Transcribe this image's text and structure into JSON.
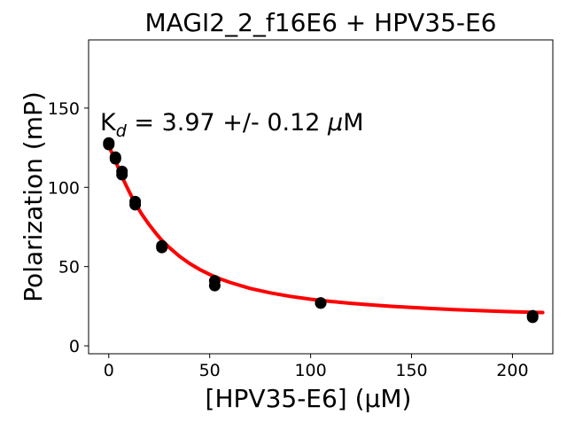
{
  "chart_data": {
    "type": "scatter",
    "title": "MAGI2_2_f16E6 + HPV35-E6",
    "xlabel": "[HPV35-E6] (μM)",
    "ylabel": "Polarization (mP)",
    "xlim": [
      -10,
      220
    ],
    "ylim": [
      -5,
      193
    ],
    "xticks": [
      0,
      50,
      100,
      150,
      200
    ],
    "yticks": [
      0,
      50,
      100,
      150
    ],
    "grid": false,
    "annotation": {
      "prefix": "K",
      "subscript": "d",
      "text": " = 3.97 +/- 0.12 ",
      "mu": "μ",
      "unit": "M"
    },
    "series": [
      {
        "kind": "points",
        "color": "#000000",
        "points": [
          {
            "x": 0,
            "y": 128
          },
          {
            "x": 0,
            "y": 127
          },
          {
            "x": 3.28,
            "y": 119
          },
          {
            "x": 3.28,
            "y": 118
          },
          {
            "x": 6.56,
            "y": 110
          },
          {
            "x": 6.56,
            "y": 108
          },
          {
            "x": 13.1,
            "y": 91
          },
          {
            "x": 13.1,
            "y": 89
          },
          {
            "x": 26.3,
            "y": 63
          },
          {
            "x": 26.3,
            "y": 62
          },
          {
            "x": 52.5,
            "y": 41
          },
          {
            "x": 52.5,
            "y": 38
          },
          {
            "x": 105,
            "y": 27
          },
          {
            "x": 105,
            "y": 27
          },
          {
            "x": 210,
            "y": 19
          },
          {
            "x": 210,
            "y": 18
          }
        ]
      },
      {
        "kind": "fit",
        "color": "#ff0000",
        "x": [
          0,
          2,
          4,
          6,
          8,
          10,
          12,
          14,
          16,
          18,
          20,
          23,
          26,
          30,
          35,
          40,
          45,
          50,
          55,
          60,
          70,
          80,
          90,
          100,
          110,
          120,
          130,
          140,
          150,
          160,
          170,
          180,
          190,
          200,
          210,
          215
        ],
        "y": [
          126.0,
          120.5,
          114.5,
          108.5,
          102.8,
          97.5,
          92.5,
          88.0,
          83.8,
          80.0,
          76.5,
          71.5,
          67.0,
          62.0,
          56.5,
          52.0,
          48.2,
          45.0,
          42.3,
          40.0,
          36.2,
          33.4,
          31.2,
          29.4,
          28.0,
          26.8,
          25.8,
          24.9,
          24.2,
          23.5,
          22.9,
          22.4,
          21.9,
          21.5,
          21.1,
          21.0
        ]
      }
    ]
  }
}
